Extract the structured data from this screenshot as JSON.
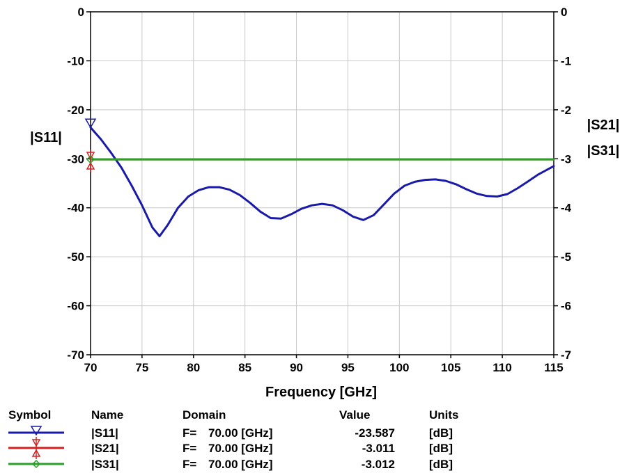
{
  "chart_data": {
    "type": "line",
    "xlabel": "Frequency [GHz]",
    "ylabel_left": "|S11|",
    "ylabel_right": [
      "|S21|",
      "|S31|"
    ],
    "xlim": [
      70,
      115
    ],
    "ylim_left": [
      -70,
      0
    ],
    "ylim_right": [
      -7,
      0
    ],
    "x_ticks": [
      70,
      75,
      80,
      85,
      90,
      95,
      100,
      105,
      110,
      115
    ],
    "y_ticks_left": [
      0,
      -10,
      -20,
      -30,
      -40,
      -50,
      -60,
      -70
    ],
    "y_ticks_right": [
      0,
      -1,
      -2,
      -3,
      -4,
      -5,
      -6,
      -7
    ],
    "grid": true,
    "series": [
      {
        "name": "|S11|",
        "axis": "left",
        "color": "#1a1aa8",
        "marker": "triangle-down",
        "x": [
          70,
          71,
          72,
          73,
          74,
          75,
          76,
          76.7,
          77.5,
          78.5,
          79.5,
          80.5,
          81.5,
          82.5,
          83.5,
          84.5,
          85.5,
          86.5,
          87.5,
          88.5,
          89.5,
          90.5,
          91.5,
          92.5,
          93.5,
          94.5,
          95.5,
          96.5,
          97.5,
          98.5,
          99.5,
          100.5,
          101.5,
          102.5,
          103.5,
          104.5,
          105.5,
          106.5,
          107.5,
          108.5,
          109.5,
          110.5,
          111.5,
          112.5,
          113.5,
          115
        ],
        "y": [
          -23.6,
          -26,
          -28.8,
          -31.8,
          -35.5,
          -39.5,
          -44,
          -45.8,
          -43.5,
          -40,
          -37.7,
          -36.4,
          -35.8,
          -35.8,
          -36.3,
          -37.4,
          -39,
          -40.8,
          -42.1,
          -42.2,
          -41.3,
          -40.2,
          -39.5,
          -39.2,
          -39.5,
          -40.5,
          -41.8,
          -42.5,
          -41.5,
          -39.3,
          -37.1,
          -35.5,
          -34.7,
          -34.3,
          -34.2,
          -34.5,
          -35.2,
          -36.2,
          -37.1,
          -37.6,
          -37.7,
          -37.2,
          -36,
          -34.6,
          -33.2,
          -31.5
        ]
      },
      {
        "name": "|S21|",
        "axis": "right",
        "color": "#d42020",
        "marker": "bowtie",
        "x": [
          70,
          115
        ],
        "y": [
          -3.011,
          -3.011
        ]
      },
      {
        "name": "|S31|",
        "axis": "right",
        "color": "#2aa02a",
        "marker": "diamond",
        "x": [
          70,
          115
        ],
        "y": [
          -3.012,
          -3.012
        ]
      }
    ],
    "legend": {
      "placement": "bottom",
      "headers": [
        "Symbol",
        "Name",
        "Domain",
        "Value",
        "Units"
      ],
      "rows": [
        {
          "name": "|S11|",
          "domain_prefix": "F=",
          "domain_value": "70.00 [GHz]",
          "value": "-23.587",
          "units": "[dB]"
        },
        {
          "name": "|S21|",
          "domain_prefix": "F=",
          "domain_value": "70.00 [GHz]",
          "value": "-3.011",
          "units": "[dB]"
        },
        {
          "name": "|S31|",
          "domain_prefix": "F=",
          "domain_value": "70.00 [GHz]",
          "value": "-3.012",
          "units": "[dB]"
        }
      ]
    }
  }
}
